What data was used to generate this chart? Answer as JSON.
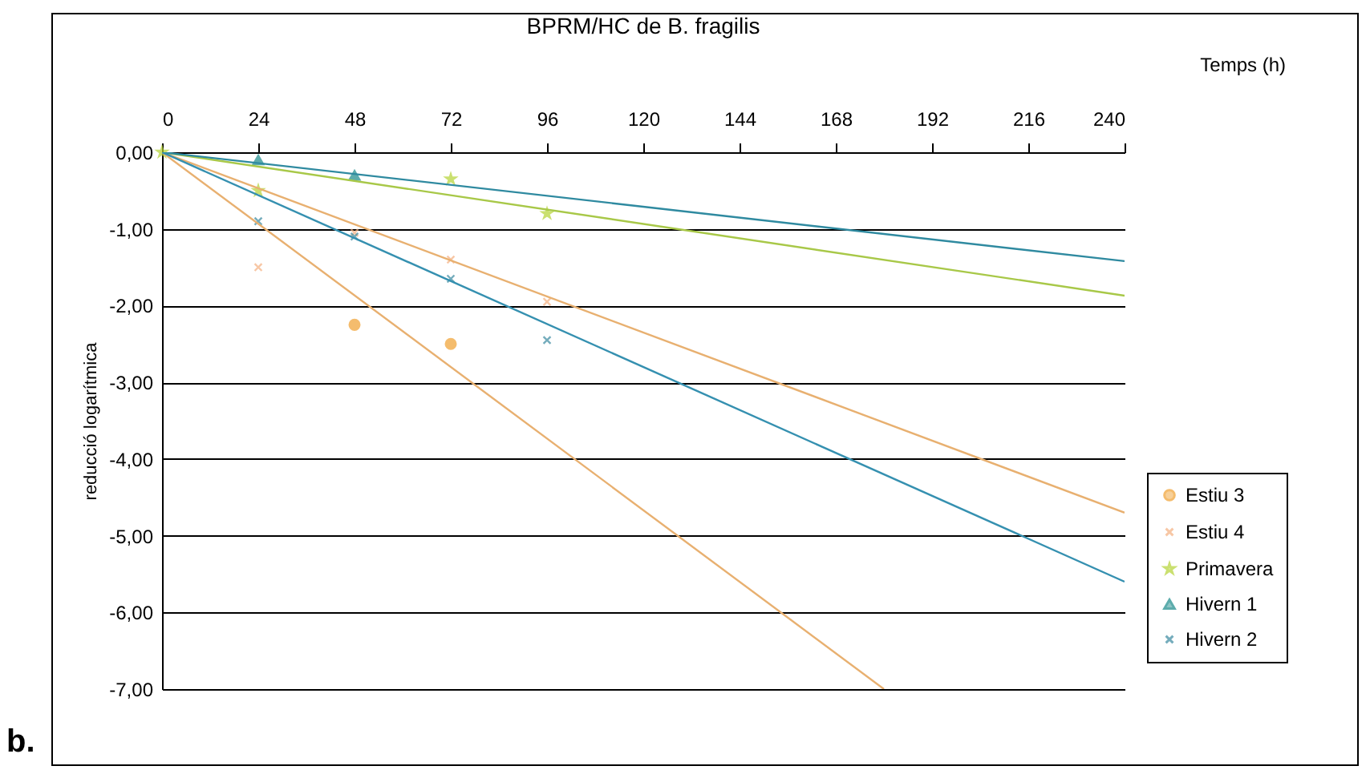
{
  "chart_data": {
    "type": "scatter",
    "title": "BPRM/HC de B. fragilis",
    "xlabel": "Temps (h)",
    "ylabel": "reducció logarítmica",
    "xlim": [
      0,
      240
    ],
    "xticks": [
      0,
      24,
      48,
      72,
      96,
      120,
      144,
      168,
      192,
      216,
      240
    ],
    "ylim": [
      -7,
      0
    ],
    "yticks": [
      {
        "value": 0,
        "label": "0,00"
      },
      {
        "value": -1,
        "label": "-1,00"
      },
      {
        "value": -2,
        "label": "-2,00"
      },
      {
        "value": -3,
        "label": "-3,00"
      },
      {
        "value": -4,
        "label": "-4,00"
      },
      {
        "value": -5,
        "label": "-5,00"
      },
      {
        "value": -6,
        "label": "-6,00"
      },
      {
        "value": -7,
        "label": "-7,00"
      }
    ],
    "grid": "y",
    "legend": "bottom right",
    "series": [
      {
        "name": "Estiu 3",
        "color": "#f0a030",
        "marker": "circle",
        "x": [
          48,
          72
        ],
        "values": [
          -2.25,
          -2.5
        ]
      },
      {
        "name": "Estiu 4",
        "color": "#f5b080",
        "marker": "cross",
        "x": [
          24,
          48,
          72,
          96
        ],
        "values": [
          -1.5,
          -1.05,
          -1.4,
          -1.95
        ]
      },
      {
        "name": "Primavera",
        "color": "#b5d334",
        "marker": "star",
        "x": [
          0,
          24,
          72,
          96
        ],
        "values": [
          0,
          -0.5,
          -0.35,
          -0.8
        ]
      },
      {
        "name": "Hivern 1",
        "color": "#1a8a8a",
        "marker": "triangle",
        "x": [
          24,
          48
        ],
        "values": [
          -0.1,
          -0.3
        ]
      },
      {
        "name": "Hivern 2",
        "color": "#3a8aa0",
        "marker": "cross",
        "x": [
          24,
          48,
          72,
          96
        ],
        "values": [
          -0.9,
          -1.1,
          -1.65,
          -2.45
        ]
      },
      {
        "type": "line",
        "color": "#e8b070",
        "x": [
          0,
          180
        ],
        "values": [
          0,
          -7
        ]
      },
      {
        "type": "line",
        "color": "#e8b070",
        "x": [
          0,
          240
        ],
        "values": [
          0,
          -4.7
        ]
      },
      {
        "type": "line",
        "color": "#a8c848",
        "x": [
          0,
          240
        ],
        "values": [
          0,
          -1.87
        ]
      },
      {
        "type": "line",
        "color": "#2f8aa0",
        "x": [
          0,
          240
        ],
        "values": [
          0,
          -1.42
        ]
      },
      {
        "type": "line",
        "color": "#3590b0",
        "x": [
          0,
          240
        ],
        "values": [
          0,
          -5.6
        ]
      }
    ],
    "annotations": [
      "b."
    ]
  }
}
